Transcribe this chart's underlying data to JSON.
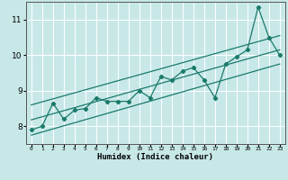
{
  "xlabel": "Humidex (Indice chaleur)",
  "background_color": "#c8e8e8",
  "grid_color": "#ffffff",
  "line_color": "#1a7a6a",
  "xlim": [
    -0.5,
    23.5
  ],
  "ylim": [
    7.5,
    11.5
  ],
  "xtick_values": [
    0,
    1,
    2,
    3,
    4,
    5,
    6,
    7,
    8,
    9,
    10,
    11,
    12,
    13,
    14,
    15,
    16,
    17,
    18,
    19,
    20,
    21,
    22,
    23
  ],
  "xtick_labels": [
    "0",
    "1",
    "2",
    "3",
    "4",
    "5",
    "6",
    "7",
    "8",
    "9",
    "10",
    "11",
    "12",
    "13",
    "14",
    "15",
    "16",
    "17",
    "18",
    "19",
    "20",
    "21",
    "22",
    "23"
  ],
  "ytick_values": [
    8,
    9,
    10,
    11
  ],
  "ytick_labels": [
    "8",
    "9",
    "10",
    "11"
  ],
  "main_line_x": [
    0,
    1,
    2,
    3,
    4,
    5,
    6,
    7,
    8,
    9,
    10,
    11,
    12,
    13,
    14,
    15,
    16,
    17,
    18,
    19,
    20,
    21,
    22,
    23
  ],
  "main_line_y": [
    7.9,
    8.0,
    8.65,
    8.2,
    8.45,
    8.5,
    8.8,
    8.7,
    8.7,
    8.7,
    9.0,
    8.8,
    9.4,
    9.3,
    9.55,
    9.65,
    9.3,
    8.8,
    9.75,
    9.95,
    10.15,
    11.35,
    10.5,
    10.0
  ],
  "upper_line_x": [
    0,
    23
  ],
  "upper_line_y": [
    8.6,
    10.55
  ],
  "lower_line_x": [
    0,
    23
  ],
  "lower_line_y": [
    7.75,
    9.75
  ],
  "mid_line_x": [
    0,
    23
  ],
  "mid_line_y": [
    8.18,
    10.15
  ]
}
